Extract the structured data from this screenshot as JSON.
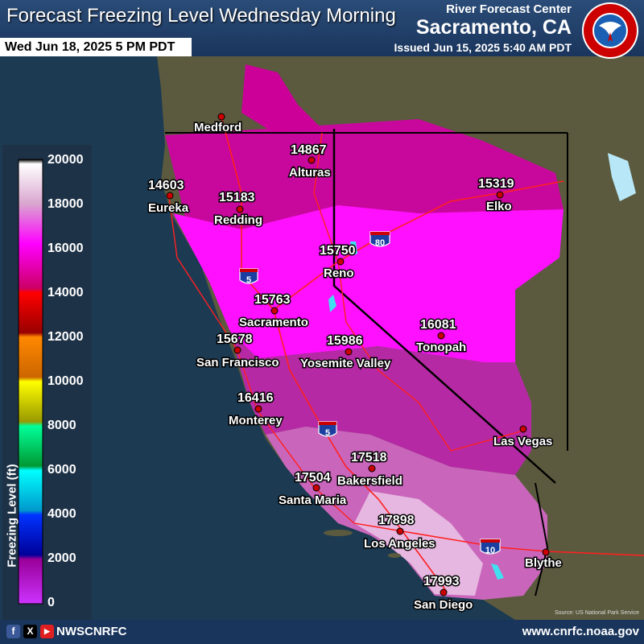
{
  "header": {
    "title": "Forecast Freezing Level Wednesday Morning",
    "valid_time": "Wed Jun 18, 2025 5 PM PDT",
    "center": "River Forecast Center",
    "location": "Sacramento, CA",
    "issued": "Issued Jun 15, 2025 5:40 AM PDT",
    "logo_text": "NATIONAL WEATHER SERVICE"
  },
  "legend": {
    "title": "Freezing Level (ft)",
    "ticks": [
      "20000",
      "18000",
      "16000",
      "14000",
      "12000",
      "10000",
      "8000",
      "6000",
      "4000",
      "2000",
      "0"
    ],
    "colors": [
      "#000000",
      "#ffffff",
      "#d9a6cf",
      "#ff00ff",
      "#cc0066",
      "#ff0000",
      "#990000",
      "#ff8800",
      "#cc6600",
      "#ffff00",
      "#999900",
      "#00ff99",
      "#009933",
      "#00ffff",
      "#0099cc",
      "#0033ff",
      "#000099",
      "#990099",
      "#cc33ff"
    ]
  },
  "stations": [
    {
      "name": "Medford",
      "value": ""
    },
    {
      "name": "Eureka",
      "value": "14603"
    },
    {
      "name": "Redding",
      "value": "15183"
    },
    {
      "name": "Alturas",
      "value": "14867"
    },
    {
      "name": "Elko",
      "value": "15319"
    },
    {
      "name": "Reno",
      "value": "15750"
    },
    {
      "name": "Sacramento",
      "value": "15763"
    },
    {
      "name": "San Francisco",
      "value": "15678"
    },
    {
      "name": "Yosemite Valley",
      "value": "15986"
    },
    {
      "name": "Tonopah",
      "value": "16081"
    },
    {
      "name": "Monterey",
      "value": "16416"
    },
    {
      "name": "Las Vegas",
      "value": ""
    },
    {
      "name": "Bakersfield",
      "value": "17518"
    },
    {
      "name": "Santa Maria",
      "value": "17504"
    },
    {
      "name": "Los Angeles",
      "value": "17898"
    },
    {
      "name": "Blythe",
      "value": ""
    },
    {
      "name": "San Diego",
      "value": "17993"
    }
  ],
  "highways": [
    "5",
    "80",
    "5",
    "10"
  ],
  "map_colors": {
    "ocean": "#1c3a52",
    "land": "#5a5a3c",
    "zone_14k": "#cc0099",
    "zone_15k": "#ff00ff",
    "zone_16k": "#b020a0",
    "zone_17k": "#cf70c0",
    "zone_18k": "#e8b8e0"
  },
  "source": "Source: US National Park Service",
  "footer": {
    "handle": "NWSCNRFC",
    "website": "www.cnrfc.noaa.gov",
    "facebook": "f",
    "x": "X",
    "youtube": "▶"
  }
}
